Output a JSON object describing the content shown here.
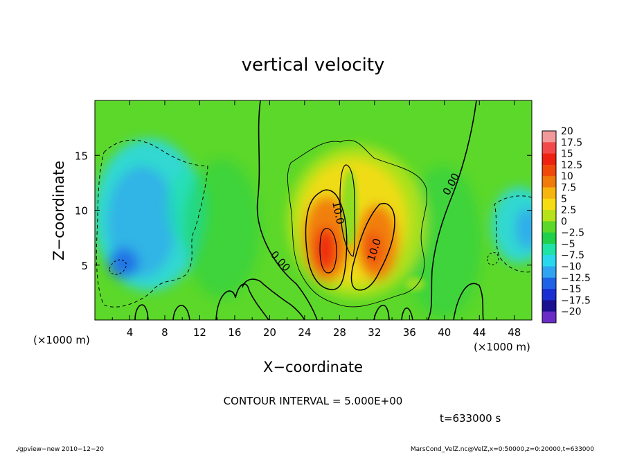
{
  "chart_data": {
    "type": "heatmap",
    "title": "vertical velocity",
    "xlabel": "X−coordinate",
    "ylabel": "Z−coordinate",
    "x_unit": "(×1000 m)",
    "y_unit": "(×1000 m)",
    "xlim": [
      0,
      50
    ],
    "ylim": [
      0,
      20
    ],
    "x_ticks": [
      "4",
      "8",
      "12",
      "16",
      "20",
      "24",
      "28",
      "32",
      "36",
      "40",
      "44",
      "48"
    ],
    "x_tick_values": [
      4,
      8,
      12,
      16,
      20,
      24,
      28,
      32,
      36,
      40,
      44,
      48
    ],
    "y_ticks": [
      "5",
      "10",
      "15"
    ],
    "y_tick_values": [
      5,
      10,
      15
    ],
    "colorbar": {
      "labels": [
        "20",
        "17.5",
        "15",
        "12.5",
        "10",
        "7.5",
        "5",
        "2.5",
        "0",
        "−2.5",
        "−5",
        "−7.5",
        "−10",
        "−12.5",
        "−15",
        "−17.5",
        "−20"
      ],
      "levels": [
        20,
        17.5,
        15,
        12.5,
        10,
        7.5,
        5,
        2.5,
        0,
        -2.5,
        -5,
        -7.5,
        -10,
        -12.5,
        -15,
        -17.5,
        -20
      ],
      "colors": [
        "#f29a9a",
        "#f24a4a",
        "#ee2211",
        "#ef4a0a",
        "#f07a0a",
        "#f6b40f",
        "#f6dc12",
        "#b6e21a",
        "#5cd82a",
        "#20d04a",
        "#1ee2a6",
        "#2ad8ee",
        "#30a4f0",
        "#2062e6",
        "#1a2ed2",
        "#1a1090",
        "#6a2cc6"
      ]
    },
    "contour_labels": [
      "0.00",
      "0.00",
      "10.0",
      "10.0"
    ],
    "contour_interval": "CONTOUR INTERVAL = 5.000E+00",
    "time": "t=633000 s"
  },
  "footer": {
    "left": "./gpview−new  2010−12−20",
    "right": "MarsCond_VelZ.nc@VelZ,x=0:50000,z=0:20000,t=633000"
  }
}
